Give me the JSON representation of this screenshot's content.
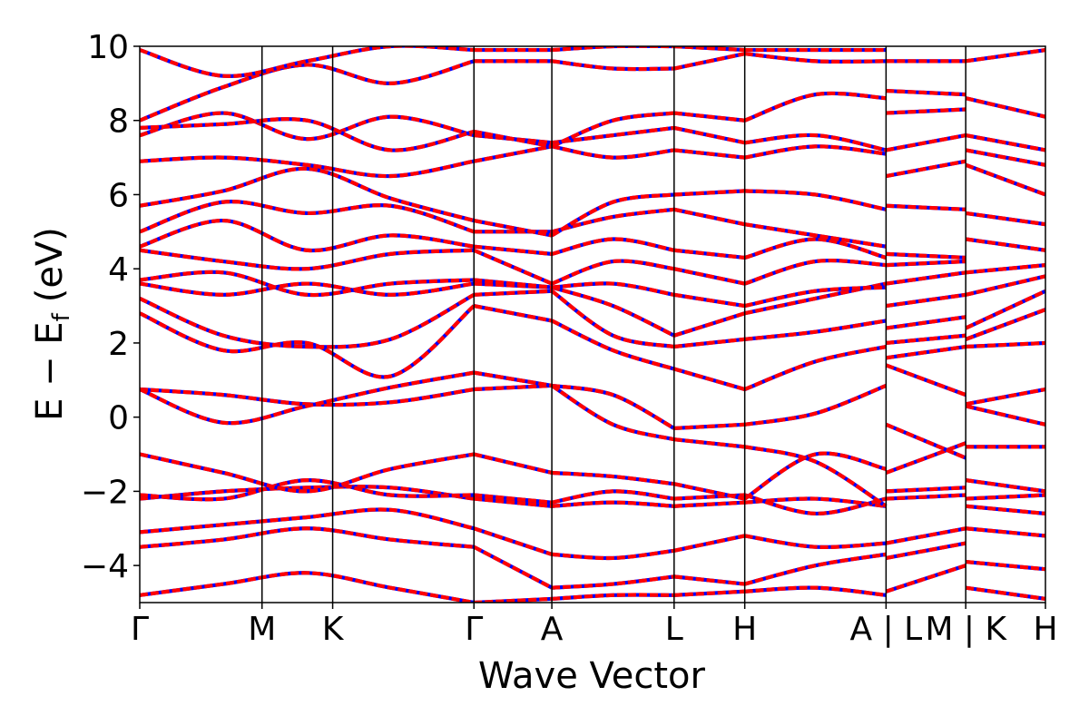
{
  "chart_data": {
    "type": "line",
    "xlabel": "Wave Vector",
    "ylabel": "E − E",
    "ylabel_sub": "f",
    "ylabel_unit": "(eV)",
    "ylim": [
      -5,
      10
    ],
    "xlim": [
      0,
      10
    ],
    "y_ticks": [
      {
        "value": -4,
        "label": "−4"
      },
      {
        "value": -2,
        "label": "−2"
      },
      {
        "value": 0,
        "label": "0"
      },
      {
        "value": 2,
        "label": "2"
      },
      {
        "value": 4,
        "label": "4"
      },
      {
        "value": 6,
        "label": "6"
      },
      {
        "value": 8,
        "label": "8"
      },
      {
        "value": 10,
        "label": "10"
      }
    ],
    "x_ticks": [
      {
        "value": 0.0,
        "label": "Γ"
      },
      {
        "value": 1.35,
        "label": "M"
      },
      {
        "value": 2.13,
        "label": "K"
      },
      {
        "value": 3.69,
        "label": "Γ"
      },
      {
        "value": 4.55,
        "label": "A"
      },
      {
        "value": 5.9,
        "label": "L"
      },
      {
        "value": 6.68,
        "label": "H"
      },
      {
        "value": 8.24,
        "label": "A | L"
      },
      {
        "value": 9.12,
        "label": "M | K"
      },
      {
        "value": 10.0,
        "label": "H"
      }
    ],
    "vlines": [
      1.35,
      2.13,
      3.69,
      4.55,
      5.9,
      6.68,
      8.24,
      9.12
    ],
    "series_colors": {
      "reference": "#0000ff",
      "overlay": "#ff0000"
    },
    "segments": [
      {
        "x0": 0.0,
        "x1": 3.69,
        "bands": [
          [
            -4.8,
            -4.5,
            -4.2,
            -4.6,
            -5.0
          ],
          [
            -3.5,
            -3.3,
            -3.0,
            -3.3,
            -3.5
          ],
          [
            -3.1,
            -2.9,
            -2.7,
            -2.5,
            -3.0
          ],
          [
            -2.2,
            -2.0,
            -1.9,
            -1.9,
            -2.2
          ],
          [
            -2.1,
            -2.2,
            -1.7,
            -2.1,
            -2.1
          ],
          [
            -1.0,
            -1.5,
            -2.0,
            -1.4,
            -1.0
          ],
          [
            0.75,
            0.6,
            0.35,
            0.4,
            0.75
          ],
          [
            0.75,
            -0.15,
            0.3,
            0.8,
            1.2
          ],
          [
            2.8,
            1.8,
            2.0,
            1.1,
            3.0
          ],
          [
            3.2,
            2.2,
            1.9,
            2.1,
            3.3
          ],
          [
            3.6,
            3.3,
            3.6,
            3.3,
            3.6
          ],
          [
            3.7,
            3.9,
            3.3,
            3.6,
            3.7
          ],
          [
            4.5,
            4.2,
            4.0,
            4.4,
            4.5
          ],
          [
            4.6,
            5.3,
            4.5,
            4.9,
            4.6
          ],
          [
            5.0,
            5.8,
            5.5,
            5.7,
            5.0
          ],
          [
            5.7,
            6.1,
            6.7,
            5.9,
            5.3
          ],
          [
            6.9,
            7.0,
            6.8,
            6.5,
            6.9
          ],
          [
            7.6,
            8.2,
            7.5,
            8.1,
            7.6
          ],
          [
            7.8,
            7.9,
            8.0,
            7.2,
            7.7
          ],
          [
            8.0,
            8.9,
            9.5,
            9.0,
            9.6
          ],
          [
            9.9,
            9.2,
            9.6,
            10.0,
            9.9
          ]
        ]
      },
      {
        "x0": 3.69,
        "x1": 4.55,
        "bands": [
          [
            -5.0,
            -4.9
          ],
          [
            -3.5,
            -4.6
          ],
          [
            -3.0,
            -3.7
          ],
          [
            -2.2,
            -2.4
          ],
          [
            -2.1,
            -2.3
          ],
          [
            -1.0,
            -1.5
          ],
          [
            0.75,
            0.85
          ],
          [
            1.2,
            0.85
          ],
          [
            3.0,
            2.6
          ],
          [
            3.3,
            3.4
          ],
          [
            3.6,
            3.5
          ],
          [
            3.7,
            3.5
          ],
          [
            4.5,
            3.6
          ],
          [
            4.6,
            4.4
          ],
          [
            5.0,
            5.0
          ],
          [
            5.3,
            4.9
          ],
          [
            6.9,
            7.3
          ],
          [
            7.6,
            7.4
          ],
          [
            7.7,
            7.3
          ],
          [
            9.6,
            9.6
          ],
          [
            9.9,
            9.9
          ]
        ]
      },
      {
        "x0": 4.55,
        "x1": 5.9,
        "bands": [
          [
            -4.9,
            -4.8,
            -4.8
          ],
          [
            -4.6,
            -4.5,
            -4.3
          ],
          [
            -3.7,
            -3.8,
            -3.6
          ],
          [
            -2.4,
            -2.3,
            -2.4
          ],
          [
            -2.3,
            -2.0,
            -2.2
          ],
          [
            -1.5,
            -1.6,
            -1.8
          ],
          [
            0.85,
            0.6,
            -0.3
          ],
          [
            0.85,
            -0.2,
            -0.6
          ],
          [
            2.6,
            1.8,
            1.3
          ],
          [
            3.4,
            2.2,
            1.9
          ],
          [
            3.5,
            3.0,
            2.2
          ],
          [
            3.5,
            3.6,
            3.3
          ],
          [
            3.6,
            4.2,
            4.0
          ],
          [
            4.4,
            4.8,
            4.5
          ],
          [
            5.0,
            5.4,
            5.6
          ],
          [
            4.9,
            5.8,
            6.0
          ],
          [
            7.3,
            7.0,
            7.2
          ],
          [
            7.4,
            7.6,
            7.8
          ],
          [
            7.3,
            8.0,
            8.2
          ],
          [
            9.6,
            9.4,
            9.4
          ],
          [
            9.9,
            10.0,
            10.0
          ]
        ]
      },
      {
        "x0": 5.9,
        "x1": 6.68,
        "bands": [
          [
            -4.8,
            -4.7
          ],
          [
            -4.3,
            -4.5
          ],
          [
            -3.6,
            -3.2
          ],
          [
            -2.4,
            -2.3
          ],
          [
            -2.2,
            -2.1
          ],
          [
            -1.8,
            -2.2
          ],
          [
            -0.3,
            -0.2
          ],
          [
            -0.6,
            -0.8
          ],
          [
            1.3,
            0.75
          ],
          [
            1.9,
            2.1
          ],
          [
            2.2,
            2.8
          ],
          [
            3.3,
            3.0
          ],
          [
            4.0,
            3.6
          ],
          [
            4.5,
            4.3
          ],
          [
            5.6,
            5.2
          ],
          [
            6.0,
            6.1
          ],
          [
            7.2,
            7.0
          ],
          [
            7.8,
            7.4
          ],
          [
            8.2,
            8.0
          ],
          [
            9.4,
            9.8
          ],
          [
            10.0,
            9.9
          ]
        ]
      },
      {
        "x0": 6.68,
        "x1": 8.24,
        "bands": [
          [
            -4.7,
            -4.6,
            -4.8
          ],
          [
            -4.5,
            -4.0,
            -3.7
          ],
          [
            -3.2,
            -3.5,
            -3.4
          ],
          [
            -2.3,
            -2.2,
            -2.4
          ],
          [
            -2.1,
            -2.6,
            -2.2
          ],
          [
            -2.2,
            -1.0,
            -1.4
          ],
          [
            -0.2,
            0.1,
            0.85
          ],
          [
            -0.8,
            -1.2,
            -2.4
          ],
          [
            0.75,
            1.5,
            1.9
          ],
          [
            2.1,
            2.3,
            2.6
          ],
          [
            2.8,
            3.2,
            3.6
          ],
          [
            3.0,
            3.4,
            3.5
          ],
          [
            3.6,
            4.2,
            4.1
          ],
          [
            4.3,
            4.8,
            4.3
          ],
          [
            5.2,
            4.9,
            4.6
          ],
          [
            6.1,
            6.0,
            5.6
          ],
          [
            7.0,
            7.3,
            7.1
          ],
          [
            7.4,
            7.6,
            7.2
          ],
          [
            8.0,
            8.7,
            8.6
          ],
          [
            9.8,
            9.6,
            9.6
          ],
          [
            9.9,
            9.9,
            9.9
          ]
        ]
      },
      {
        "x0": 8.24,
        "x1": 9.12,
        "bands": [
          [
            -4.7,
            -4.0
          ],
          [
            -3.8,
            -3.4
          ],
          [
            -3.4,
            -3.0
          ],
          [
            -2.2,
            -2.1
          ],
          [
            -2.0,
            -1.9
          ],
          [
            -1.5,
            -0.7
          ],
          [
            -0.2,
            -1.1
          ],
          [
            1.4,
            0.6
          ],
          [
            1.6,
            1.9
          ],
          [
            2.0,
            2.2
          ],
          [
            2.4,
            2.7
          ],
          [
            3.0,
            3.3
          ],
          [
            3.6,
            3.9
          ],
          [
            4.1,
            4.2
          ],
          [
            4.4,
            4.3
          ],
          [
            5.7,
            5.6
          ],
          [
            6.5,
            6.9
          ],
          [
            7.2,
            7.6
          ],
          [
            8.2,
            8.3
          ],
          [
            8.8,
            8.7
          ],
          [
            9.6,
            9.6
          ]
        ]
      },
      {
        "x0": 9.12,
        "x1": 10.0,
        "bands": [
          [
            -4.6,
            -4.9
          ],
          [
            -3.9,
            -4.1
          ],
          [
            -3.0,
            -3.2
          ],
          [
            -2.4,
            -2.6
          ],
          [
            -2.2,
            -2.1
          ],
          [
            -1.7,
            -2.0
          ],
          [
            -0.8,
            -0.8
          ],
          [
            0.3,
            -0.2
          ],
          [
            0.35,
            0.75
          ],
          [
            1.9,
            2.0
          ],
          [
            2.1,
            2.9
          ],
          [
            2.4,
            3.4
          ],
          [
            3.3,
            3.8
          ],
          [
            3.9,
            4.1
          ],
          [
            4.8,
            4.5
          ],
          [
            5.5,
            5.2
          ],
          [
            6.8,
            6.0
          ],
          [
            7.2,
            6.8
          ],
          [
            7.6,
            7.2
          ],
          [
            8.6,
            8.1
          ],
          [
            9.6,
            9.9
          ]
        ]
      }
    ]
  }
}
